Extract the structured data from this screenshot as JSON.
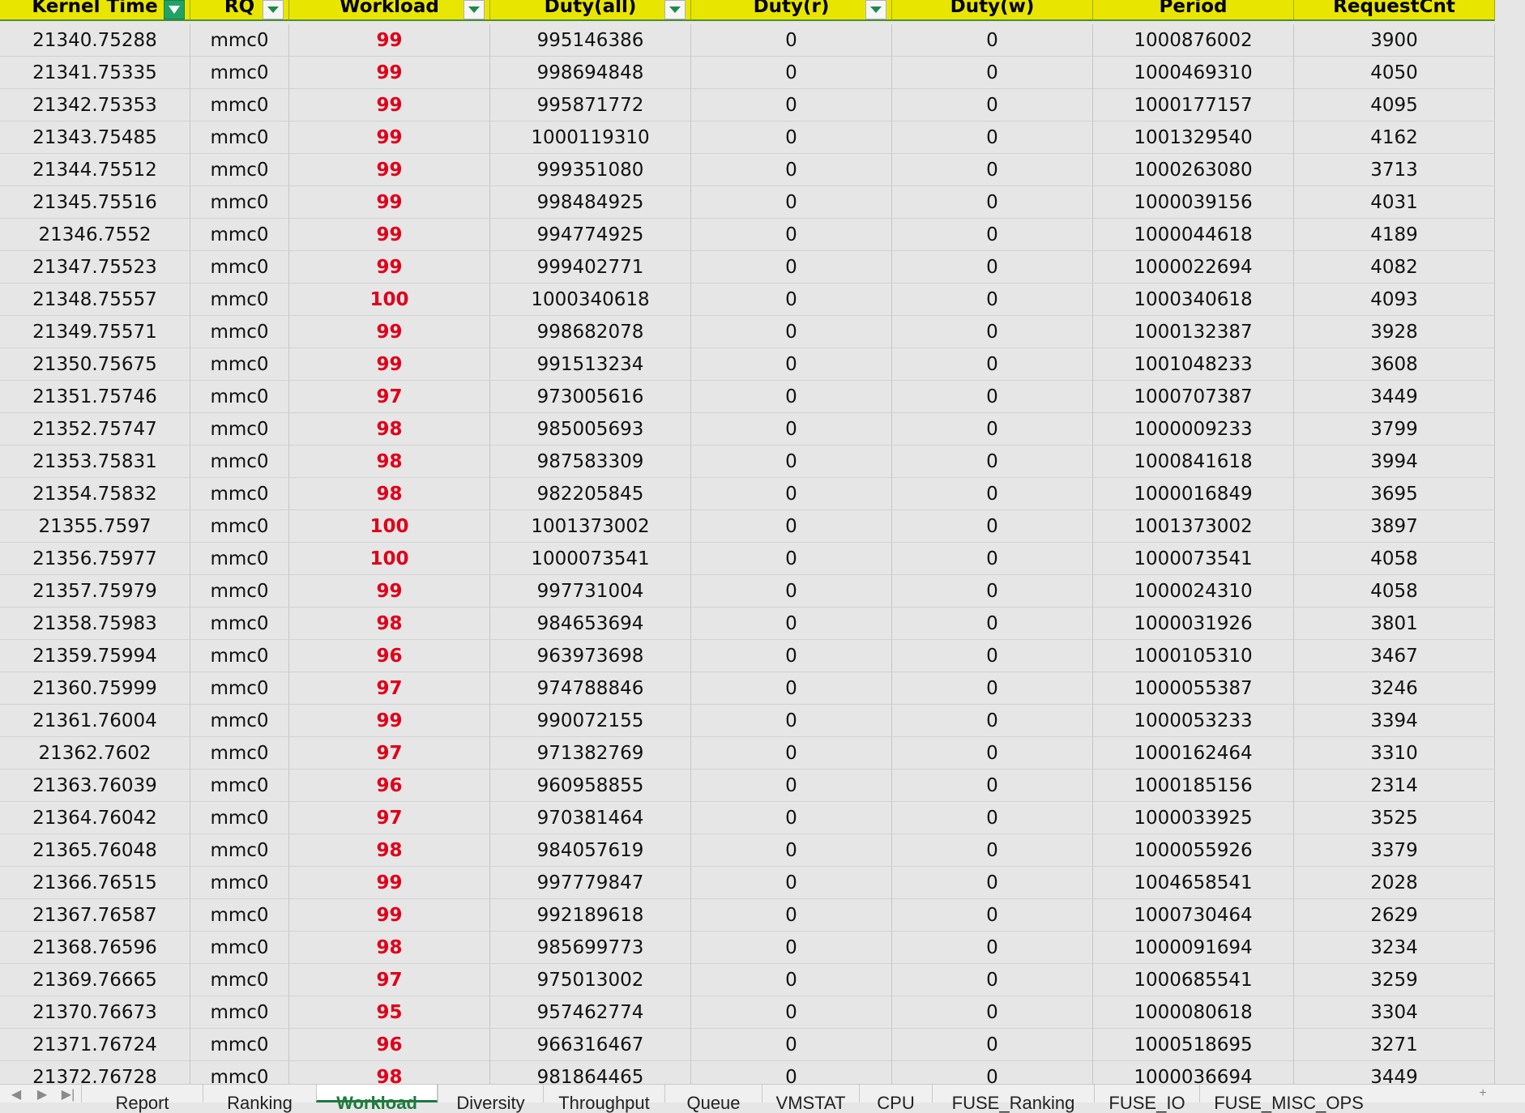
{
  "header": {
    "columns": [
      {
        "label": "Kernel Time",
        "filter": "active"
      },
      {
        "label": "RQ",
        "filter": "dropdown"
      },
      {
        "label": "Workload",
        "filter": "dropdown"
      },
      {
        "label": "Duty(all)",
        "filter": "dropdown"
      },
      {
        "label": "Duty(r)",
        "filter": "dropdown"
      },
      {
        "label": "Duty(w)",
        "filter": "none"
      },
      {
        "label": "Period",
        "filter": "none"
      },
      {
        "label": "RequestCnt",
        "filter": "none"
      }
    ]
  },
  "rows": [
    [
      "21340.75288",
      "mmc0",
      "99",
      "995146386",
      "0",
      "0",
      "1000876002",
      "3900"
    ],
    [
      "21341.75335",
      "mmc0",
      "99",
      "998694848",
      "0",
      "0",
      "1000469310",
      "4050"
    ],
    [
      "21342.75353",
      "mmc0",
      "99",
      "995871772",
      "0",
      "0",
      "1000177157",
      "4095"
    ],
    [
      "21343.75485",
      "mmc0",
      "99",
      "1000119310",
      "0",
      "0",
      "1001329540",
      "4162"
    ],
    [
      "21344.75512",
      "mmc0",
      "99",
      "999351080",
      "0",
      "0",
      "1000263080",
      "3713"
    ],
    [
      "21345.75516",
      "mmc0",
      "99",
      "998484925",
      "0",
      "0",
      "1000039156",
      "4031"
    ],
    [
      "21346.7552",
      "mmc0",
      "99",
      "994774925",
      "0",
      "0",
      "1000044618",
      "4189"
    ],
    [
      "21347.75523",
      "mmc0",
      "99",
      "999402771",
      "0",
      "0",
      "1000022694",
      "4082"
    ],
    [
      "21348.75557",
      "mmc0",
      "100",
      "1000340618",
      "0",
      "0",
      "1000340618",
      "4093"
    ],
    [
      "21349.75571",
      "mmc0",
      "99",
      "998682078",
      "0",
      "0",
      "1000132387",
      "3928"
    ],
    [
      "21350.75675",
      "mmc0",
      "99",
      "991513234",
      "0",
      "0",
      "1001048233",
      "3608"
    ],
    [
      "21351.75746",
      "mmc0",
      "97",
      "973005616",
      "0",
      "0",
      "1000707387",
      "3449"
    ],
    [
      "21352.75747",
      "mmc0",
      "98",
      "985005693",
      "0",
      "0",
      "1000009233",
      "3799"
    ],
    [
      "21353.75831",
      "mmc0",
      "98",
      "987583309",
      "0",
      "0",
      "1000841618",
      "3994"
    ],
    [
      "21354.75832",
      "mmc0",
      "98",
      "982205845",
      "0",
      "0",
      "1000016849",
      "3695"
    ],
    [
      "21355.7597",
      "mmc0",
      "100",
      "1001373002",
      "0",
      "0",
      "1001373002",
      "3897"
    ],
    [
      "21356.75977",
      "mmc0",
      "100",
      "1000073541",
      "0",
      "0",
      "1000073541",
      "4058"
    ],
    [
      "21357.75979",
      "mmc0",
      "99",
      "997731004",
      "0",
      "0",
      "1000024310",
      "4058"
    ],
    [
      "21358.75983",
      "mmc0",
      "98",
      "984653694",
      "0",
      "0",
      "1000031926",
      "3801"
    ],
    [
      "21359.75994",
      "mmc0",
      "96",
      "963973698",
      "0",
      "0",
      "1000105310",
      "3467"
    ],
    [
      "21360.75999",
      "mmc0",
      "97",
      "974788846",
      "0",
      "0",
      "1000055387",
      "3246"
    ],
    [
      "21361.76004",
      "mmc0",
      "99",
      "990072155",
      "0",
      "0",
      "1000053233",
      "3394"
    ],
    [
      "21362.7602",
      "mmc0",
      "97",
      "971382769",
      "0",
      "0",
      "1000162464",
      "3310"
    ],
    [
      "21363.76039",
      "mmc0",
      "96",
      "960958855",
      "0",
      "0",
      "1000185156",
      "2314"
    ],
    [
      "21364.76042",
      "mmc0",
      "97",
      "970381464",
      "0",
      "0",
      "1000033925",
      "3525"
    ],
    [
      "21365.76048",
      "mmc0",
      "98",
      "984057619",
      "0",
      "0",
      "1000055926",
      "3379"
    ],
    [
      "21366.76515",
      "mmc0",
      "99",
      "997779847",
      "0",
      "0",
      "1004658541",
      "2028"
    ],
    [
      "21367.76587",
      "mmc0",
      "99",
      "992189618",
      "0",
      "0",
      "1000730464",
      "2629"
    ],
    [
      "21368.76596",
      "mmc0",
      "98",
      "985699773",
      "0",
      "0",
      "1000091694",
      "3234"
    ],
    [
      "21369.76665",
      "mmc0",
      "97",
      "975013002",
      "0",
      "0",
      "1000685541",
      "3259"
    ],
    [
      "21370.76673",
      "mmc0",
      "95",
      "957462774",
      "0",
      "0",
      "1000080618",
      "3304"
    ],
    [
      "21371.76724",
      "mmc0",
      "96",
      "966316467",
      "0",
      "0",
      "1000518695",
      "3271"
    ],
    [
      "21372.76728",
      "mmc0",
      "98",
      "981864465",
      "0",
      "0",
      "1000036694",
      "3449"
    ]
  ],
  "sheet_tabs": {
    "nav": [
      "◀",
      "▶",
      "▶|"
    ],
    "tabs": [
      "Report",
      "Ranking",
      "Workload",
      "Diversity",
      "Throughput",
      "Queue",
      "VMSTAT",
      "CPU",
      "FUSE_Ranking",
      "FUSE_IO",
      "FUSE_MISC_OPS"
    ],
    "active_index": 2,
    "more": "+"
  },
  "colors": {
    "header_bg": "#e8e600",
    "workload_text": "#e0001a",
    "active_tab": "#1e7a3e",
    "filter_active": "#21a366"
  }
}
